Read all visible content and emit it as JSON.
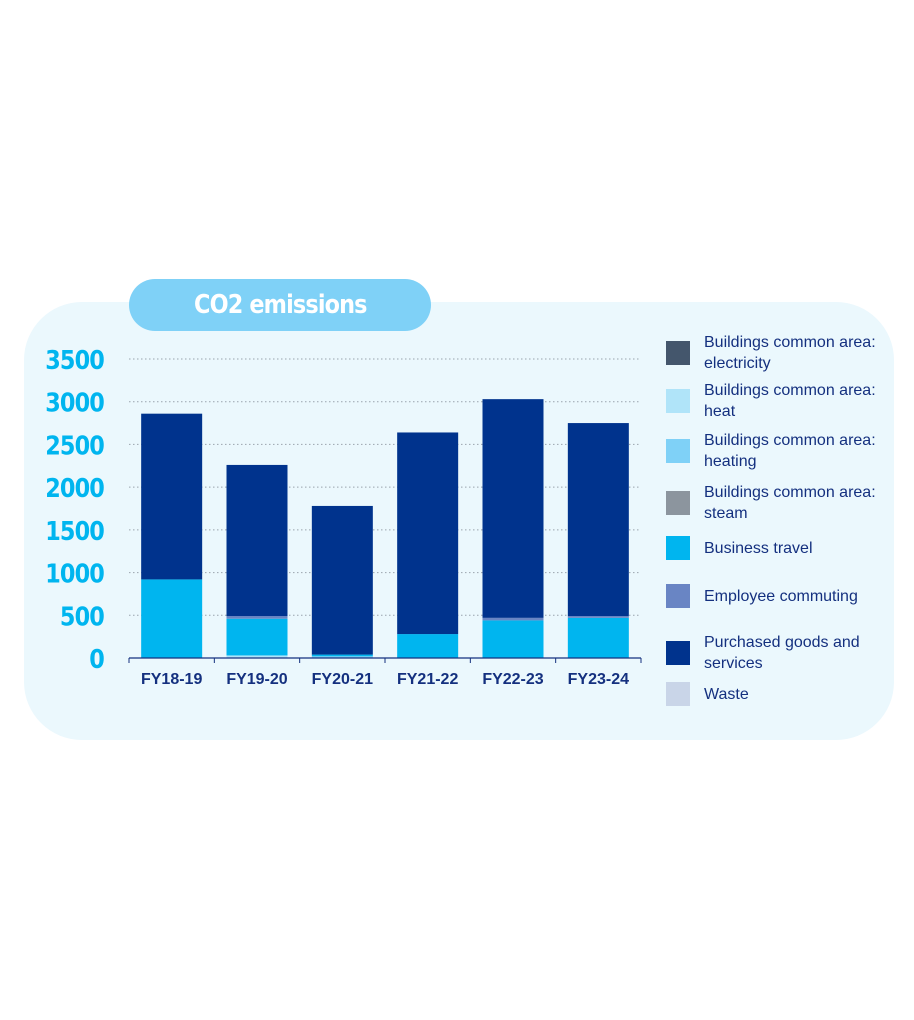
{
  "chart_data": {
    "type": "bar",
    "stacked": true,
    "title": "CO2 emissions",
    "categories": [
      "FY18-19",
      "FY19-20",
      "FY20-21",
      "FY21-22",
      "FY22-23",
      "FY23-24"
    ],
    "ylim": [
      0,
      3500
    ],
    "yticks": [
      0,
      500,
      1000,
      1500,
      2000,
      2500,
      3000,
      3500
    ],
    "grid": true,
    "legend_position": "right",
    "series": [
      {
        "name": "Buildings common area: electricity",
        "color": "#44566c",
        "values": [
          0,
          0,
          0,
          0,
          0,
          0
        ]
      },
      {
        "name": "Buildings common area: heat",
        "color": "#b0e4f9",
        "values": [
          0,
          30,
          0,
          0,
          0,
          0
        ]
      },
      {
        "name": "Buildings common area: heating",
        "color": "#7fd1f7",
        "values": [
          0,
          0,
          20,
          0,
          0,
          0
        ]
      },
      {
        "name": "Buildings common area: steam",
        "color": "#8c959e",
        "values": [
          0,
          0,
          0,
          0,
          0,
          0
        ]
      },
      {
        "name": "Business travel",
        "color": "#00b5ef",
        "values": [
          920,
          430,
          20,
          280,
          440,
          470
        ]
      },
      {
        "name": "Employee commuting",
        "color": "#6985c4",
        "values": [
          0,
          30,
          0,
          0,
          30,
          20
        ]
      },
      {
        "name": "Purchased goods and services",
        "color": "#00338d",
        "values": [
          1940,
          1770,
          1740,
          2360,
          2560,
          2260
        ]
      },
      {
        "name": "Waste",
        "color": "#c9d5e8",
        "values": [
          0,
          0,
          0,
          0,
          0,
          0
        ]
      }
    ]
  }
}
